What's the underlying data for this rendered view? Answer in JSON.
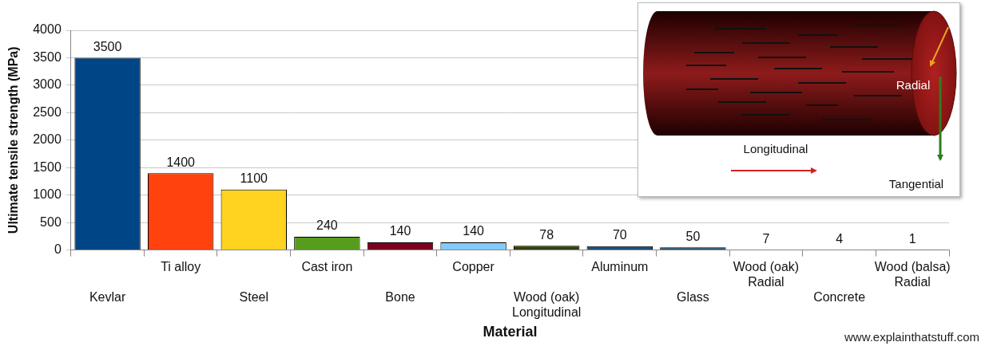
{
  "chart_data": {
    "type": "bar",
    "y_label": "Ultimate tensile strength (MPa)",
    "x_label": "Material",
    "categories": [
      "Kevlar",
      "Ti alloy",
      "Steel",
      "Cast iron",
      "Bone",
      "Copper",
      "Wood (oak) Longitudinal",
      "Aluminum",
      "Glass",
      "Wood (oak) Radial",
      "Concrete",
      "Wood (balsa) Radial"
    ],
    "values": [
      3500,
      1400,
      1100,
      240,
      140,
      140,
      78,
      70,
      50,
      7,
      4,
      1
    ],
    "colors": [
      "#004586",
      "#ff420e",
      "#ffd320",
      "#579d1c",
      "#7e0021",
      "#83caff",
      "#314004",
      "#1f4e79",
      "#1c4a6e",
      "#ff950e",
      "#c5000b",
      "#0084d1"
    ],
    "ylim": [
      0,
      4000
    ],
    "yticks": [
      0,
      500,
      1000,
      1500,
      2000,
      2500,
      3000,
      3500,
      4000
    ],
    "grid": true,
    "data_labels": true,
    "diagram": {
      "longitudinal": "Longitudinal",
      "radial": "Radial",
      "tangential": "Tangential"
    },
    "source": "www.explainthatstuff.com"
  }
}
